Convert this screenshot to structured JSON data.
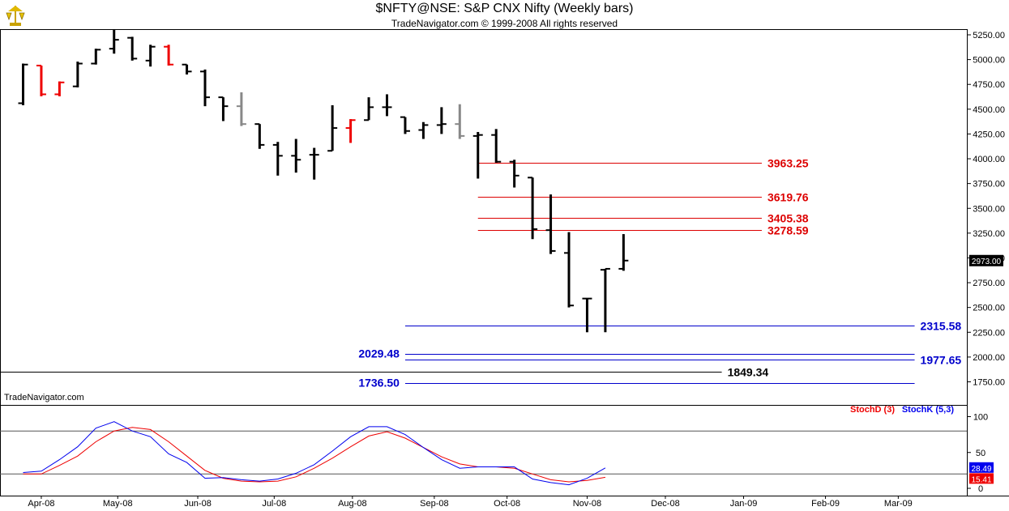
{
  "header": {
    "title": "$NFTY@NSE:  S&P CNX Nifty  (Weekly bars)",
    "subtitle": "TradeNavigator.com © 1999-2008 All rights reserved",
    "watermark": "TradeNavigator.com"
  },
  "colors": {
    "bar_black": "#000000",
    "bar_red": "#ee0000",
    "bar_gray": "#888888",
    "level_red": "#dd0000",
    "level_blue": "#0000cc",
    "stoch_d": "#ee0000",
    "stoch_k": "#0000ee"
  },
  "chart_data": [
    {
      "type": "ohlc",
      "ylim": [
        1600,
        5300
      ],
      "y_ticks": [
        1750,
        2000,
        2250,
        2500,
        2750,
        3000,
        3250,
        3500,
        3750,
        4000,
        4250,
        4500,
        4750,
        5000,
        5250
      ],
      "y_tick_labels": [
        "1750.00",
        "2000.00",
        "2250.00",
        "2500.00",
        "2750.00",
        "3000.00",
        "3250.00",
        "3500.00",
        "3750.00",
        "4000.00",
        "4250.00",
        "4500.00",
        "4750.00",
        "5000.00",
        "5250.00"
      ],
      "x_tick_labels": [
        "Apr-08",
        "May-08",
        "Jun-08",
        "Jul-08",
        "Aug-08",
        "Sep-08",
        "Oct-08",
        "Nov-08",
        "Dec-08",
        "Jan-09",
        "Feb-09",
        "Mar-09"
      ],
      "x_tick_weeks": [
        1,
        5.2,
        9.6,
        13.8,
        18.1,
        22.6,
        26.6,
        31,
        35.3,
        39.6,
        44.1,
        48.1
      ],
      "last_price_label": "2973.00",
      "last_price": 2973,
      "bars": [
        {
          "w": 0,
          "o": 4560,
          "h": 4960,
          "l": 4540,
          "c": 4950,
          "color": "black"
        },
        {
          "w": 1,
          "o": 4940,
          "h": 4940,
          "l": 4630,
          "c": 4650,
          "color": "red"
        },
        {
          "w": 2,
          "o": 4650,
          "h": 4780,
          "l": 4630,
          "c": 4770,
          "color": "red"
        },
        {
          "w": 3,
          "o": 4730,
          "h": 4980,
          "l": 4720,
          "c": 4960,
          "color": "black"
        },
        {
          "w": 4,
          "o": 4960,
          "h": 5110,
          "l": 4950,
          "c": 5100,
          "color": "black"
        },
        {
          "w": 5,
          "o": 5110,
          "h": 5300,
          "l": 5060,
          "c": 5200,
          "color": "black"
        },
        {
          "w": 6,
          "o": 5220,
          "h": 5230,
          "l": 4990,
          "c": 5010,
          "color": "black"
        },
        {
          "w": 7,
          "o": 4990,
          "h": 5150,
          "l": 4930,
          "c": 5130,
          "color": "black"
        },
        {
          "w": 8,
          "o": 5130,
          "h": 5150,
          "l": 4940,
          "c": 4950,
          "color": "red"
        },
        {
          "w": 9,
          "o": 4950,
          "h": 4950,
          "l": 4850,
          "c": 4880,
          "color": "black"
        },
        {
          "w": 10,
          "o": 4880,
          "h": 4900,
          "l": 4530,
          "c": 4620,
          "color": "black"
        },
        {
          "w": 11,
          "o": 4620,
          "h": 4620,
          "l": 4380,
          "c": 4530,
          "color": "black"
        },
        {
          "w": 12,
          "o": 4530,
          "h": 4670,
          "l": 4330,
          "c": 4350,
          "color": "gray"
        },
        {
          "w": 13,
          "o": 4350,
          "h": 4350,
          "l": 4100,
          "c": 4140,
          "color": "black"
        },
        {
          "w": 14,
          "o": 4140,
          "h": 4170,
          "l": 3830,
          "c": 4030,
          "color": "black"
        },
        {
          "w": 15,
          "o": 4030,
          "h": 4200,
          "l": 3860,
          "c": 3990,
          "color": "black"
        },
        {
          "w": 16,
          "o": 4040,
          "h": 4110,
          "l": 3790,
          "c": 4040,
          "color": "black"
        },
        {
          "w": 17,
          "o": 4080,
          "h": 4540,
          "l": 4080,
          "c": 4310,
          "color": "black"
        },
        {
          "w": 18,
          "o": 4310,
          "h": 4400,
          "l": 4160,
          "c": 4390,
          "color": "red"
        },
        {
          "w": 19,
          "o": 4390,
          "h": 4620,
          "l": 4390,
          "c": 4520,
          "color": "black"
        },
        {
          "w": 20,
          "o": 4520,
          "h": 4650,
          "l": 4430,
          "c": 4520,
          "color": "black"
        },
        {
          "w": 21,
          "o": 4420,
          "h": 4420,
          "l": 4250,
          "c": 4280,
          "color": "black"
        },
        {
          "w": 22,
          "o": 4290,
          "h": 4370,
          "l": 4200,
          "c": 4340,
          "color": "black"
        },
        {
          "w": 23,
          "o": 4340,
          "h": 4520,
          "l": 4250,
          "c": 4350,
          "color": "black"
        },
        {
          "w": 24,
          "o": 4350,
          "h": 4550,
          "l": 4200,
          "c": 4230,
          "color": "gray"
        },
        {
          "w": 25,
          "o": 4230,
          "h": 4270,
          "l": 3800,
          "c": 4240,
          "color": "black"
        },
        {
          "w": 26,
          "o": 4240,
          "h": 4300,
          "l": 3960,
          "c": 3970,
          "color": "black"
        },
        {
          "w": 27,
          "o": 3970,
          "h": 3990,
          "l": 3710,
          "c": 3830,
          "color": "black"
        },
        {
          "w": 28,
          "o": 3810,
          "h": 3810,
          "l": 3190,
          "c": 3290,
          "color": "black"
        },
        {
          "w": 29,
          "o": 3280,
          "h": 3640,
          "l": 3040,
          "c": 3070,
          "color": "black"
        },
        {
          "w": 30,
          "o": 3050,
          "h": 3260,
          "l": 2500,
          "c": 2520,
          "color": "black"
        },
        {
          "w": 31,
          "o": 2590,
          "h": 2590,
          "l": 2250,
          "c": 2590,
          "color": "black"
        },
        {
          "w": 32,
          "o": 2880,
          "h": 2890,
          "l": 2250,
          "c": 2890,
          "color": "black"
        },
        {
          "w": 33,
          "o": 2890,
          "h": 3240,
          "l": 2870,
          "c": 2973,
          "color": "black"
        }
      ],
      "levels": [
        {
          "value": 3963.25,
          "label": "3963.25",
          "color": "red",
          "from_w": 25,
          "to_w": 40.6,
          "label_side": "right"
        },
        {
          "value": 3619.76,
          "label": "3619.76",
          "color": "red",
          "from_w": 25,
          "to_w": 40.6,
          "label_side": "right"
        },
        {
          "value": 3405.38,
          "label": "3405.38",
          "color": "red",
          "from_w": 25,
          "to_w": 40.6,
          "label_side": "right"
        },
        {
          "value": 3278.59,
          "label": "3278.59",
          "color": "red",
          "from_w": 25,
          "to_w": 40.6,
          "label_side": "right"
        },
        {
          "value": 2315.58,
          "label": "2315.58",
          "color": "blue",
          "from_w": 21,
          "to_w": 49,
          "label_side": "right"
        },
        {
          "value": 2029.48,
          "label": "2029.48",
          "color": "blue",
          "from_w": 21,
          "to_w": 49,
          "label_side": "left"
        },
        {
          "value": 1977.65,
          "label": "1977.65",
          "color": "blue",
          "from_w": 21,
          "to_w": 49,
          "label_side": "right"
        },
        {
          "value": 1849.34,
          "label": "1849.34",
          "color": "black",
          "from_w": -1.5,
          "to_w": 38.4,
          "label_side": "right"
        },
        {
          "value": 1736.5,
          "label": "1736.50",
          "color": "blue",
          "from_w": 21,
          "to_w": 49,
          "label_side": "left"
        }
      ]
    },
    {
      "type": "line",
      "ylim": [
        -8,
        117
      ],
      "y_ticks": [
        0,
        50,
        100
      ],
      "y_tick_labels": [
        "0",
        "50",
        "100"
      ],
      "ref_lines": [
        20,
        80
      ],
      "legend": [
        "StochD (3)",
        "StochK (5,3)"
      ],
      "last_d_label": "15.41",
      "last_k_label": "28.49",
      "series": [
        {
          "name": "StochD (3)",
          "color": "red",
          "values": [
            20,
            20,
            32,
            45,
            65,
            80,
            85,
            82,
            65,
            45,
            25,
            14,
            10,
            9,
            10,
            16,
            28,
            42,
            58,
            73,
            79,
            70,
            57,
            44,
            34,
            30,
            30,
            28,
            20,
            12,
            9,
            11,
            15.41
          ]
        },
        {
          "name": "StochK (5,3)",
          "color": "blue",
          "values": [
            22,
            24,
            40,
            58,
            84,
            93,
            80,
            72,
            48,
            36,
            14,
            15,
            12,
            10,
            13,
            21,
            33,
            52,
            72,
            86,
            86,
            75,
            57,
            40,
            28,
            30,
            30,
            30,
            13,
            8,
            5,
            14,
            28.49
          ]
        }
      ]
    }
  ]
}
